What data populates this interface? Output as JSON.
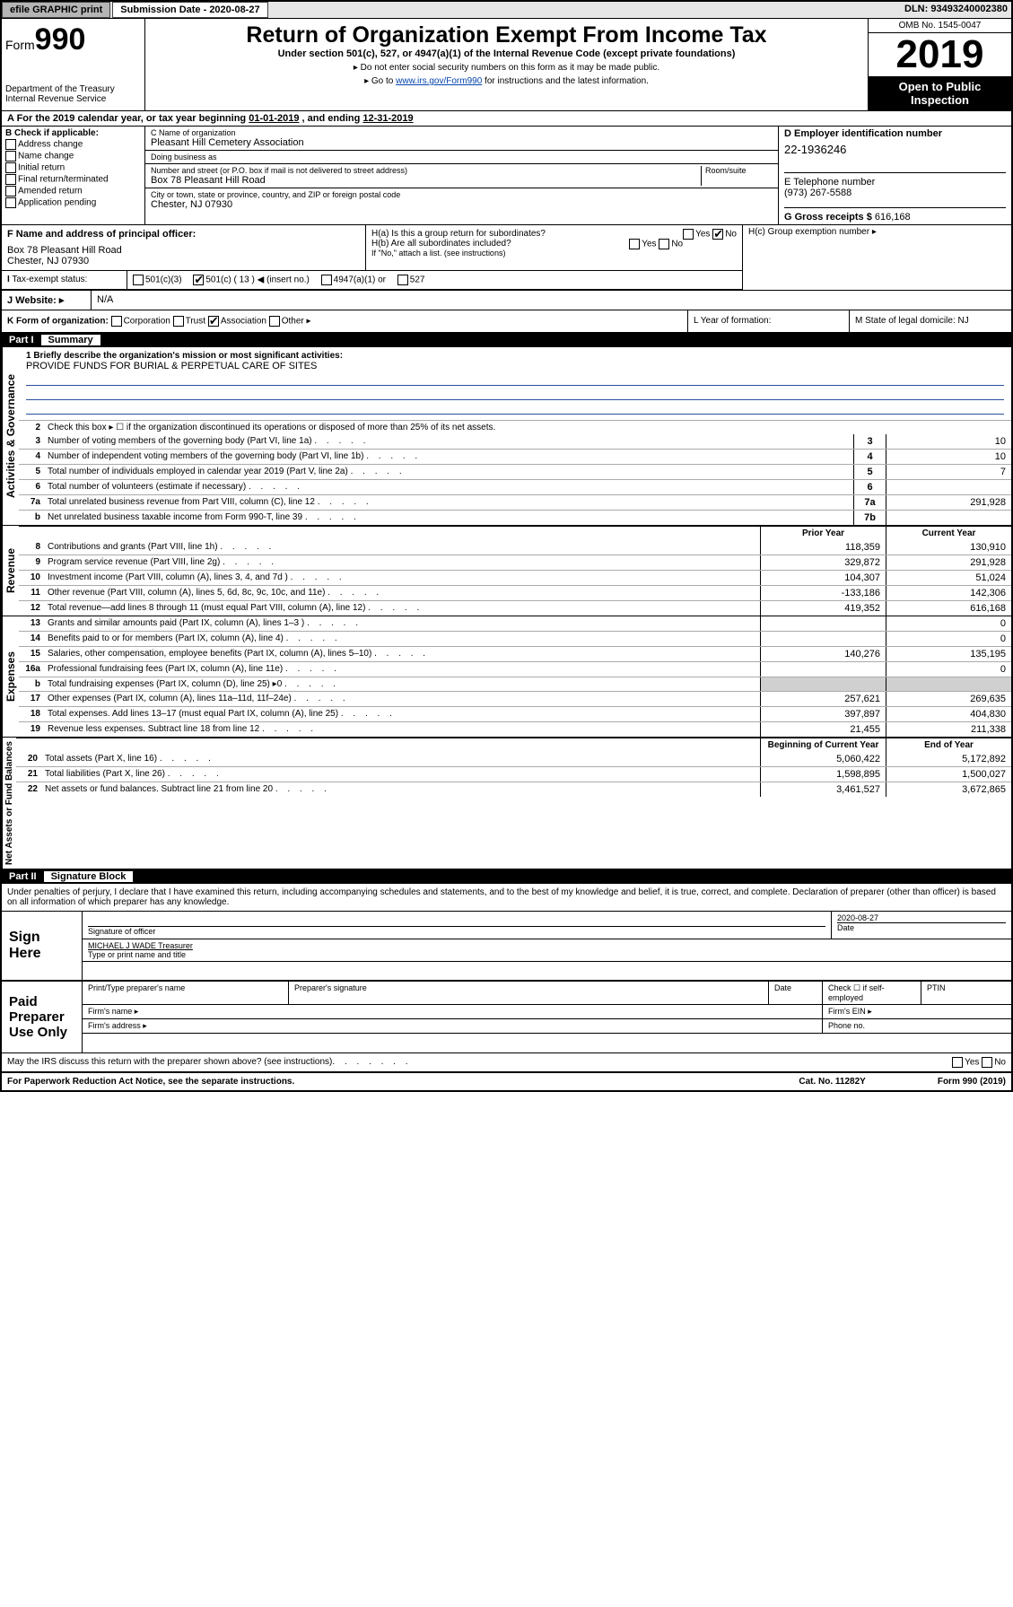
{
  "topbar": {
    "efile": "efile GRAPHIC print",
    "submission": "Submission Date - 2020-08-27",
    "dln": "DLN: 93493240002380"
  },
  "header": {
    "form_prefix": "Form",
    "form_num": "990",
    "title": "Return of Organization Exempt From Income Tax",
    "subtitle": "Under section 501(c), 527, or 4947(a)(1) of the Internal Revenue Code (except private foundations)",
    "note1": "▸ Do not enter social security numbers on this form as it may be made public.",
    "note2_pre": "▸ Go to ",
    "note2_link": "www.irs.gov/Form990",
    "note2_post": " for instructions and the latest information.",
    "dept": "Department of the Treasury\nInternal Revenue Service",
    "omb": "OMB No. 1545-0047",
    "year": "2019",
    "open_public": "Open to Public Inspection"
  },
  "period": {
    "label_a": "A For the 2019 calendar year, or tax year beginning ",
    "begin": "01-01-2019",
    "mid": " , and ending ",
    "end": "12-31-2019"
  },
  "checks": {
    "header": "B Check if applicable:",
    "items": [
      "Address change",
      "Name change",
      "Initial return",
      "Final return/terminated",
      "Amended return",
      "Application pending"
    ]
  },
  "entity": {
    "name_lbl": "C Name of organization",
    "name": "Pleasant Hill Cemetery Association",
    "dba_lbl": "Doing business as",
    "addr_lbl": "Number and street (or P.O. box if mail is not delivered to street address)",
    "room_lbl": "Room/suite",
    "addr": "Box 78 Pleasant Hill Road",
    "city_lbl": "City or town, state or province, country, and ZIP or foreign postal code",
    "city": "Chester, NJ  07930"
  },
  "ein": {
    "lbl": "D Employer identification number",
    "val": "22-1936246",
    "phone_lbl": "E Telephone number",
    "phone": "(973) 267-5588",
    "gross_lbl": "G Gross receipts $ ",
    "gross": "616,168"
  },
  "officer": {
    "lbl": "F Name and address of principal officer:",
    "addr1": "Box 78 Pleasant Hill Road",
    "addr2": "Chester, NJ  07930"
  },
  "h": {
    "ha": "H(a)  Is this a group return for subordinates?",
    "hb": "H(b)  Are all subordinates included?",
    "hb_note": "If \"No,\" attach a list. (see instructions)",
    "hc": "H(c)  Group exemption number ▸"
  },
  "tax_status": {
    "lbl": "Tax-exempt status:",
    "c3": "501(c)(3)",
    "c": "501(c) ( 13 ) ◀ (insert no.)",
    "a1": "4947(a)(1) or",
    "s527": "527"
  },
  "website": {
    "lbl": "J  Website: ▸",
    "val": "N/A"
  },
  "korg": {
    "lbl": "K Form of organization:",
    "corp": "Corporation",
    "trust": "Trust",
    "assoc": "Association",
    "other": "Other ▸",
    "l_lbl": "L Year of formation:",
    "m_lbl": "M State of legal domicile: ",
    "m_val": "NJ"
  },
  "part1": {
    "title": "Part I",
    "subtitle": "Summary"
  },
  "mission": {
    "q": "1  Briefly describe the organization's mission or most significant activities:",
    "text": "PROVIDE FUNDS FOR BURIAL & PERPETUAL CARE OF SITES"
  },
  "governance": {
    "label": "Activities & Governance",
    "line2": "Check this box ▸ ☐  if the organization discontinued its operations or disposed of more than 25% of its net assets.",
    "rows": [
      {
        "n": "3",
        "t": "Number of voting members of the governing body (Part VI, line 1a)",
        "box": "3",
        "v": "10"
      },
      {
        "n": "4",
        "t": "Number of independent voting members of the governing body (Part VI, line 1b)",
        "box": "4",
        "v": "10"
      },
      {
        "n": "5",
        "t": "Total number of individuals employed in calendar year 2019 (Part V, line 2a)",
        "box": "5",
        "v": "7"
      },
      {
        "n": "6",
        "t": "Total number of volunteers (estimate if necessary)",
        "box": "6",
        "v": ""
      },
      {
        "n": "7a",
        "t": "Total unrelated business revenue from Part VIII, column (C), line 12",
        "box": "7a",
        "v": "291,928"
      },
      {
        "n": "b",
        "t": "Net unrelated business taxable income from Form 990-T, line 39",
        "box": "7b",
        "v": ""
      }
    ]
  },
  "revenue": {
    "label": "Revenue",
    "h1": "Prior Year",
    "h2": "Current Year",
    "rows": [
      {
        "n": "8",
        "t": "Contributions and grants (Part VIII, line 1h)",
        "p": "118,359",
        "c": "130,910"
      },
      {
        "n": "9",
        "t": "Program service revenue (Part VIII, line 2g)",
        "p": "329,872",
        "c": "291,928"
      },
      {
        "n": "10",
        "t": "Investment income (Part VIII, column (A), lines 3, 4, and 7d )",
        "p": "104,307",
        "c": "51,024"
      },
      {
        "n": "11",
        "t": "Other revenue (Part VIII, column (A), lines 5, 6d, 8c, 9c, 10c, and 11e)",
        "p": "-133,186",
        "c": "142,306"
      },
      {
        "n": "12",
        "t": "Total revenue—add lines 8 through 11 (must equal Part VIII, column (A), line 12)",
        "p": "419,352",
        "c": "616,168"
      }
    ]
  },
  "expenses": {
    "label": "Expenses",
    "rows": [
      {
        "n": "13",
        "t": "Grants and similar amounts paid (Part IX, column (A), lines 1–3 )",
        "p": "",
        "c": "0"
      },
      {
        "n": "14",
        "t": "Benefits paid to or for members (Part IX, column (A), line 4)",
        "p": "",
        "c": "0"
      },
      {
        "n": "15",
        "t": "Salaries, other compensation, employee benefits (Part IX, column (A), lines 5–10)",
        "p": "140,276",
        "c": "135,195"
      },
      {
        "n": "16a",
        "t": "Professional fundraising fees (Part IX, column (A), line 11e)",
        "p": "",
        "c": "0"
      },
      {
        "n": "b",
        "t": "Total fundraising expenses (Part IX, column (D), line 25) ▸0",
        "p": "gray",
        "c": "gray"
      },
      {
        "n": "17",
        "t": "Other expenses (Part IX, column (A), lines 11a–11d, 11f–24e)",
        "p": "257,621",
        "c": "269,635"
      },
      {
        "n": "18",
        "t": "Total expenses. Add lines 13–17 (must equal Part IX, column (A), line 25)",
        "p": "397,897",
        "c": "404,830"
      },
      {
        "n": "19",
        "t": "Revenue less expenses. Subtract line 18 from line 12",
        "p": "21,455",
        "c": "211,338"
      }
    ]
  },
  "netassets": {
    "label": "Net Assets or Fund Balances",
    "h1": "Beginning of Current Year",
    "h2": "End of Year",
    "rows": [
      {
        "n": "20",
        "t": "Total assets (Part X, line 16)",
        "p": "5,060,422",
        "c": "5,172,892"
      },
      {
        "n": "21",
        "t": "Total liabilities (Part X, line 26)",
        "p": "1,598,895",
        "c": "1,500,027"
      },
      {
        "n": "22",
        "t": "Net assets or fund balances. Subtract line 21 from line 20",
        "p": "3,461,527",
        "c": "3,672,865"
      }
    ]
  },
  "part2": {
    "title": "Part II",
    "subtitle": "Signature Block"
  },
  "declare": "Under penalties of perjury, I declare that I have examined this return, including accompanying schedules and statements, and to the best of my knowledge and belief, it is true, correct, and complete. Declaration of preparer (other than officer) is based on all information of which preparer has any knowledge.",
  "sign": {
    "label": "Sign Here",
    "date": "2020-08-27",
    "sig_lbl": "Signature of officer",
    "date_lbl": "Date",
    "name": "MICHAEL J WADE  Treasurer",
    "name_lbl": "Type or print name and title"
  },
  "paid": {
    "label": "Paid Preparer Use Only",
    "h1": "Print/Type preparer's name",
    "h2": "Preparer's signature",
    "h3": "Date",
    "h4": "Check ☐ if self-employed",
    "h5": "PTIN",
    "fname": "Firm's name  ▸",
    "fein": "Firm's EIN ▸",
    "faddr": "Firm's address ▸",
    "fphone": "Phone no."
  },
  "discuss": {
    "q": "May the IRS discuss this return with the preparer shown above? (see instructions)",
    "yes": "Yes",
    "no": "No"
  },
  "footer": {
    "left": "For Paperwork Reduction Act Notice, see the separate instructions.",
    "mid": "Cat. No. 11282Y",
    "right": "Form 990 (2019)"
  }
}
